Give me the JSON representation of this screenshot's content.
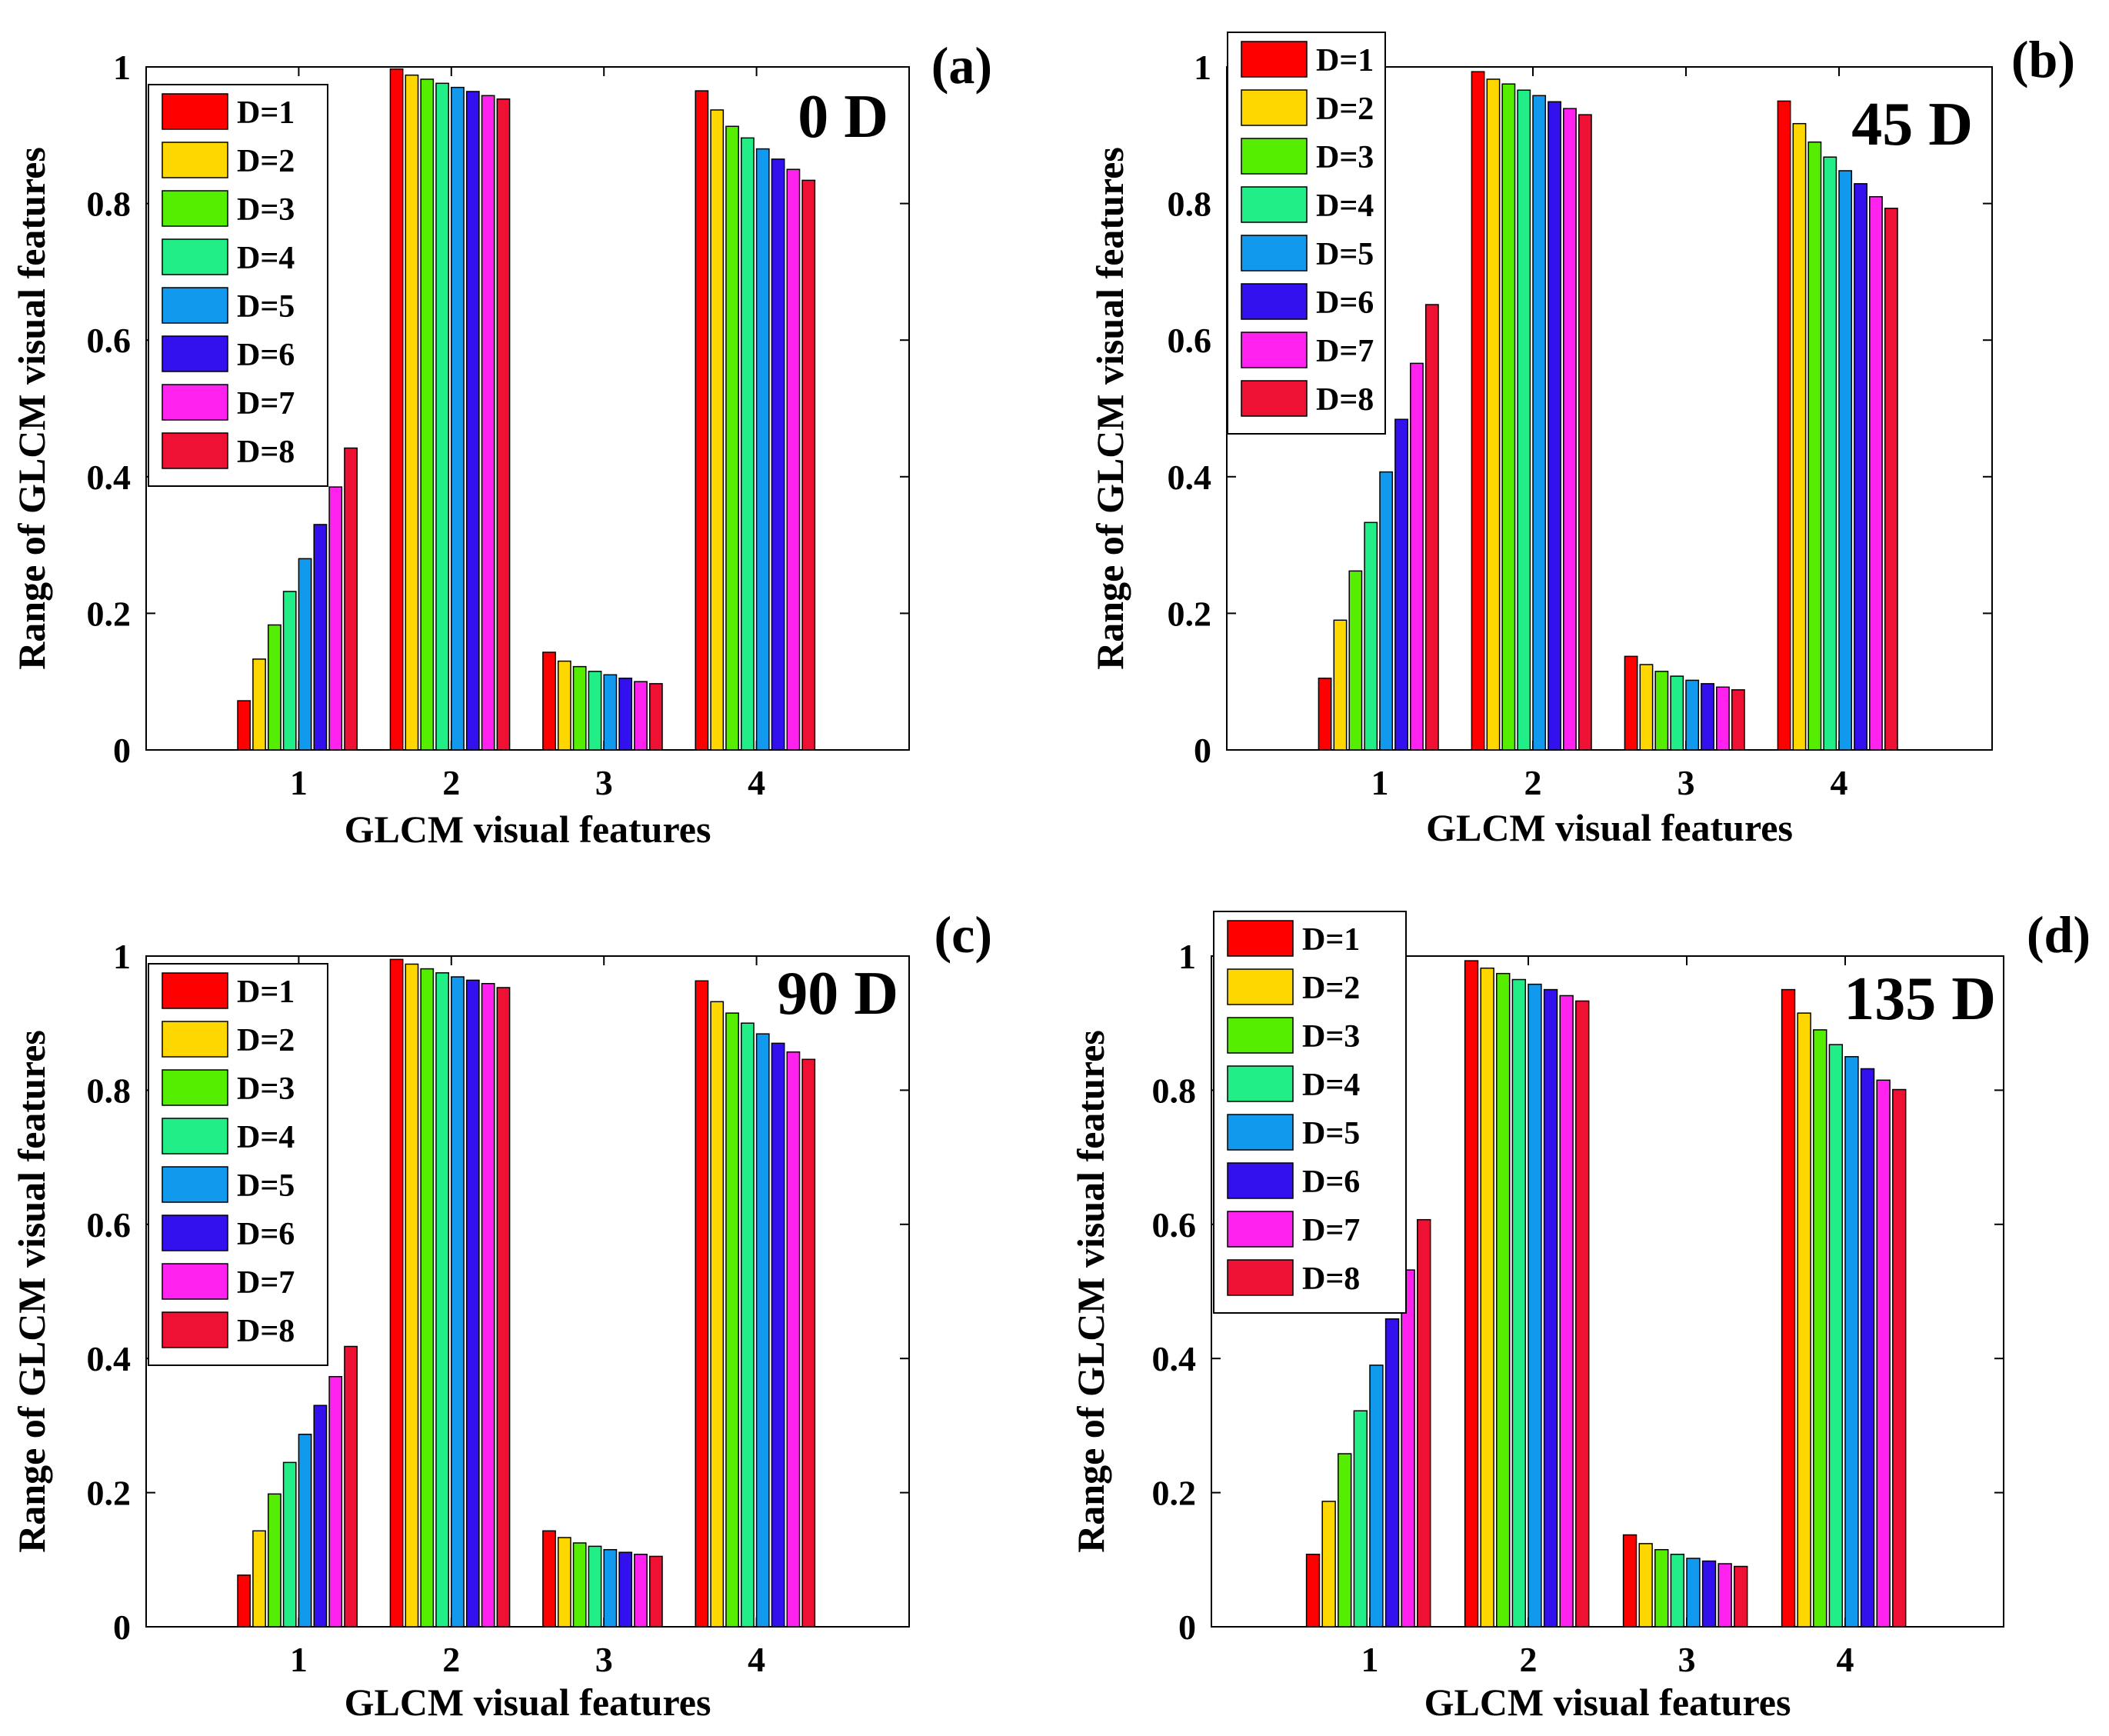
{
  "figure": {
    "x_ticks": [
      "1",
      "2",
      "3",
      "4"
    ],
    "y_ticks": [
      "0",
      "0.2",
      "0.4",
      "0.6",
      "0.8",
      "1"
    ],
    "series_names": [
      "D=1",
      "D=2",
      "D=3",
      "D=4",
      "D=5",
      "D=6",
      "D=7",
      "D=8"
    ],
    "series_colors": [
      "#ff0000",
      "#ffd700",
      "#55ee00",
      "#22ee88",
      "#1199ee",
      "#3311ee",
      "#ff22ee",
      "#ee1133"
    ]
  },
  "chart_data": [
    {
      "type": "bar",
      "panel_label": "(a)",
      "title": "0 D",
      "xlabel": "GLCM visual features",
      "ylabel": "Range of GLCM visual features",
      "categories": [
        "1",
        "2",
        "3",
        "4"
      ],
      "ylim": [
        0,
        1
      ],
      "legend_position": "top-left",
      "series": [
        {
          "name": "D=1",
          "values": [
            0.072,
            0.997,
            0.143,
            0.965
          ]
        },
        {
          "name": "D=2",
          "values": [
            0.133,
            0.988,
            0.13,
            0.937
          ]
        },
        {
          "name": "D=3",
          "values": [
            0.183,
            0.982,
            0.122,
            0.913
          ]
        },
        {
          "name": "D=4",
          "values": [
            0.232,
            0.976,
            0.115,
            0.896
          ]
        },
        {
          "name": "D=5",
          "values": [
            0.28,
            0.97,
            0.11,
            0.88
          ]
        },
        {
          "name": "D=6",
          "values": [
            0.33,
            0.964,
            0.105,
            0.865
          ]
        },
        {
          "name": "D=7",
          "values": [
            0.385,
            0.958,
            0.1,
            0.85
          ]
        },
        {
          "name": "D=8",
          "values": [
            0.442,
            0.953,
            0.097,
            0.834
          ]
        }
      ]
    },
    {
      "type": "bar",
      "panel_label": "(b)",
      "title": "45 D",
      "xlabel": "GLCM visual features",
      "ylabel": "Range of GLCM visual features",
      "categories": [
        "1",
        "2",
        "3",
        "4"
      ],
      "ylim": [
        0,
        1
      ],
      "legend_position": "top-left",
      "series": [
        {
          "name": "D=1",
          "values": [
            0.105,
            0.993,
            0.137,
            0.95
          ]
        },
        {
          "name": "D=2",
          "values": [
            0.19,
            0.982,
            0.125,
            0.917
          ]
        },
        {
          "name": "D=3",
          "values": [
            0.262,
            0.975,
            0.115,
            0.89
          ]
        },
        {
          "name": "D=4",
          "values": [
            0.333,
            0.966,
            0.108,
            0.868
          ]
        },
        {
          "name": "D=5",
          "values": [
            0.407,
            0.958,
            0.102,
            0.848
          ]
        },
        {
          "name": "D=6",
          "values": [
            0.484,
            0.949,
            0.097,
            0.829
          ]
        },
        {
          "name": "D=7",
          "values": [
            0.566,
            0.939,
            0.092,
            0.81
          ]
        },
        {
          "name": "D=8",
          "values": [
            0.652,
            0.93,
            0.088,
            0.793
          ]
        }
      ]
    },
    {
      "type": "bar",
      "panel_label": "(c)",
      "title": "90 D",
      "xlabel": "GLCM visual features",
      "ylabel": "Range of GLCM visual features",
      "categories": [
        "1",
        "2",
        "3",
        "4"
      ],
      "ylim": [
        0,
        1
      ],
      "legend_position": "top-left",
      "series": [
        {
          "name": "D=1",
          "values": [
            0.077,
            0.995,
            0.143,
            0.963
          ]
        },
        {
          "name": "D=2",
          "values": [
            0.143,
            0.988,
            0.133,
            0.932
          ]
        },
        {
          "name": "D=3",
          "values": [
            0.198,
            0.981,
            0.125,
            0.915
          ]
        },
        {
          "name": "D=4",
          "values": [
            0.245,
            0.975,
            0.12,
            0.9
          ]
        },
        {
          "name": "D=5",
          "values": [
            0.287,
            0.969,
            0.115,
            0.884
          ]
        },
        {
          "name": "D=6",
          "values": [
            0.33,
            0.964,
            0.111,
            0.87
          ]
        },
        {
          "name": "D=7",
          "values": [
            0.373,
            0.959,
            0.108,
            0.857
          ]
        },
        {
          "name": "D=8",
          "values": [
            0.418,
            0.953,
            0.105,
            0.846
          ]
        }
      ]
    },
    {
      "type": "bar",
      "panel_label": "(d)",
      "title": "135 D",
      "xlabel": "GLCM visual features",
      "ylabel": "Range of GLCM visual features",
      "categories": [
        "1",
        "2",
        "3",
        "4"
      ],
      "ylim": [
        0,
        1
      ],
      "legend_position": "top-left",
      "series": [
        {
          "name": "D=1",
          "values": [
            0.108,
            0.993,
            0.137,
            0.95
          ]
        },
        {
          "name": "D=2",
          "values": [
            0.187,
            0.982,
            0.124,
            0.915
          ]
        },
        {
          "name": "D=3",
          "values": [
            0.258,
            0.974,
            0.115,
            0.89
          ]
        },
        {
          "name": "D=4",
          "values": [
            0.322,
            0.965,
            0.108,
            0.868
          ]
        },
        {
          "name": "D=5",
          "values": [
            0.39,
            0.958,
            0.102,
            0.85
          ]
        },
        {
          "name": "D=6",
          "values": [
            0.459,
            0.95,
            0.098,
            0.832
          ]
        },
        {
          "name": "D=7",
          "values": [
            0.532,
            0.941,
            0.094,
            0.815
          ]
        },
        {
          "name": "D=8",
          "values": [
            0.607,
            0.933,
            0.09,
            0.801
          ]
        }
      ]
    }
  ]
}
